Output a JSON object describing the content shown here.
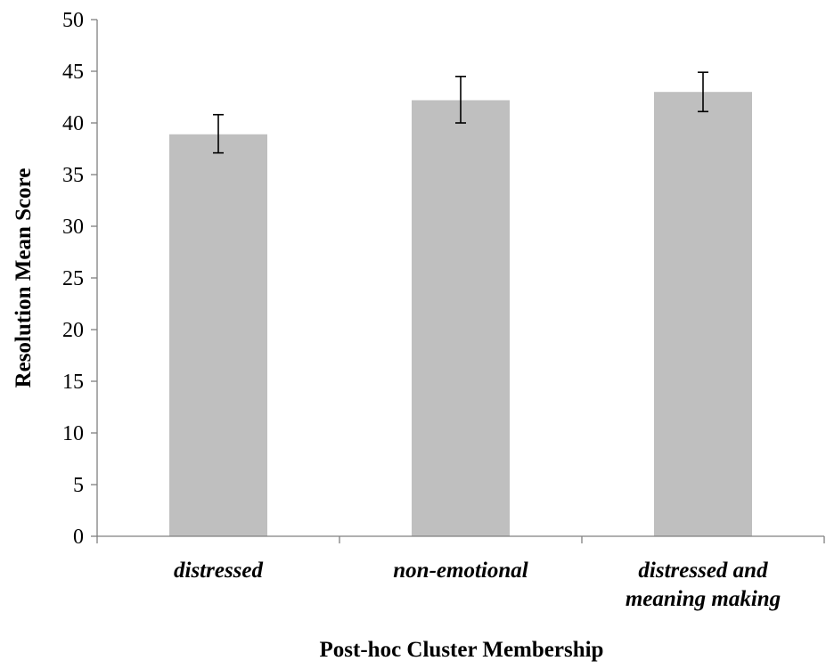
{
  "chart_data": {
    "type": "bar",
    "categories": [
      [
        "distressed"
      ],
      [
        "non-emotional"
      ],
      [
        "distressed and",
        "meaning making"
      ]
    ],
    "values": [
      38.9,
      42.2,
      43.0
    ],
    "error_low": [
      37.1,
      40.0,
      41.1
    ],
    "error_high": [
      40.8,
      44.5,
      44.9
    ],
    "xlabel": "Post-hoc Cluster Membership",
    "ylabel": "Resolution Mean Score",
    "ylim": [
      0,
      50
    ],
    "yticks": [
      0,
      5,
      10,
      15,
      20,
      25,
      30,
      35,
      40,
      45,
      50
    ],
    "grid": false,
    "bar_color": "#bfbfbf",
    "axis_color": "#808080"
  }
}
